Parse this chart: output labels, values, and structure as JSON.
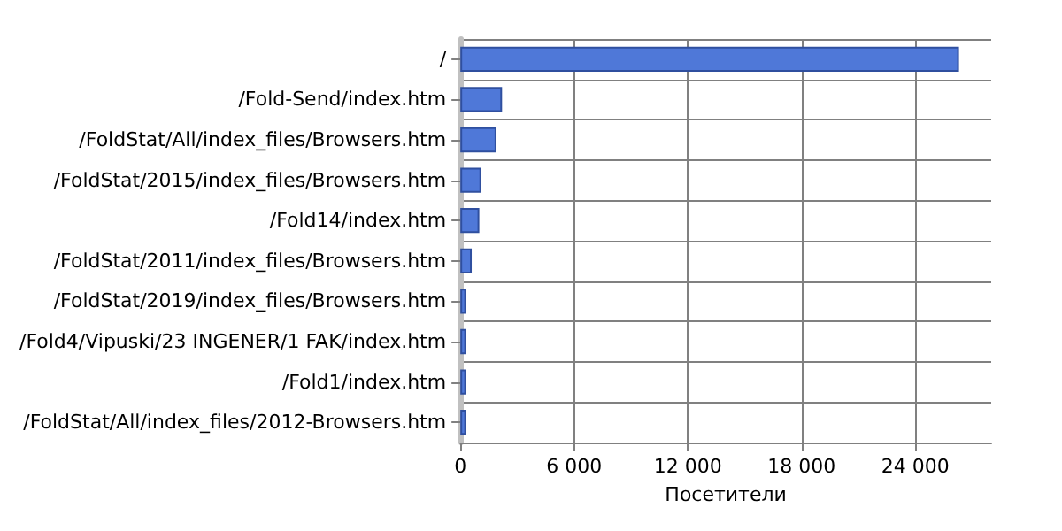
{
  "chart_data": {
    "type": "bar",
    "orientation": "horizontal",
    "xlabel": "Посетители",
    "categories": [
      "/",
      "/Fold-Send/index.htm",
      "/FoldStat/All/index_files/Browsers.htm",
      "/FoldStat/2015/index_files/Browsers.htm",
      "/Fold14/index.htm",
      "/FoldStat/2011/index_files/Browsers.htm",
      "/FoldStat/2019/index_files/Browsers.htm",
      "/Fold4/Vipuski/23 INGENER/1 FAK/index.htm",
      "/Fold1/index.htm",
      "/FoldStat/All/index_files/2012-Browsers.htm"
    ],
    "values": [
      26300,
      2200,
      1900,
      1100,
      1000,
      600,
      300,
      300,
      300,
      300
    ],
    "color": "#4f78d8",
    "xlim": [
      0,
      28000
    ],
    "xticks": [
      {
        "value": 0,
        "label": "0"
      },
      {
        "value": 6000,
        "label": "6 000"
      },
      {
        "value": 12000,
        "label": "12 000"
      },
      {
        "value": 18000,
        "label": "18 000"
      },
      {
        "value": 24000,
        "label": "24 000"
      }
    ],
    "grid": true
  }
}
